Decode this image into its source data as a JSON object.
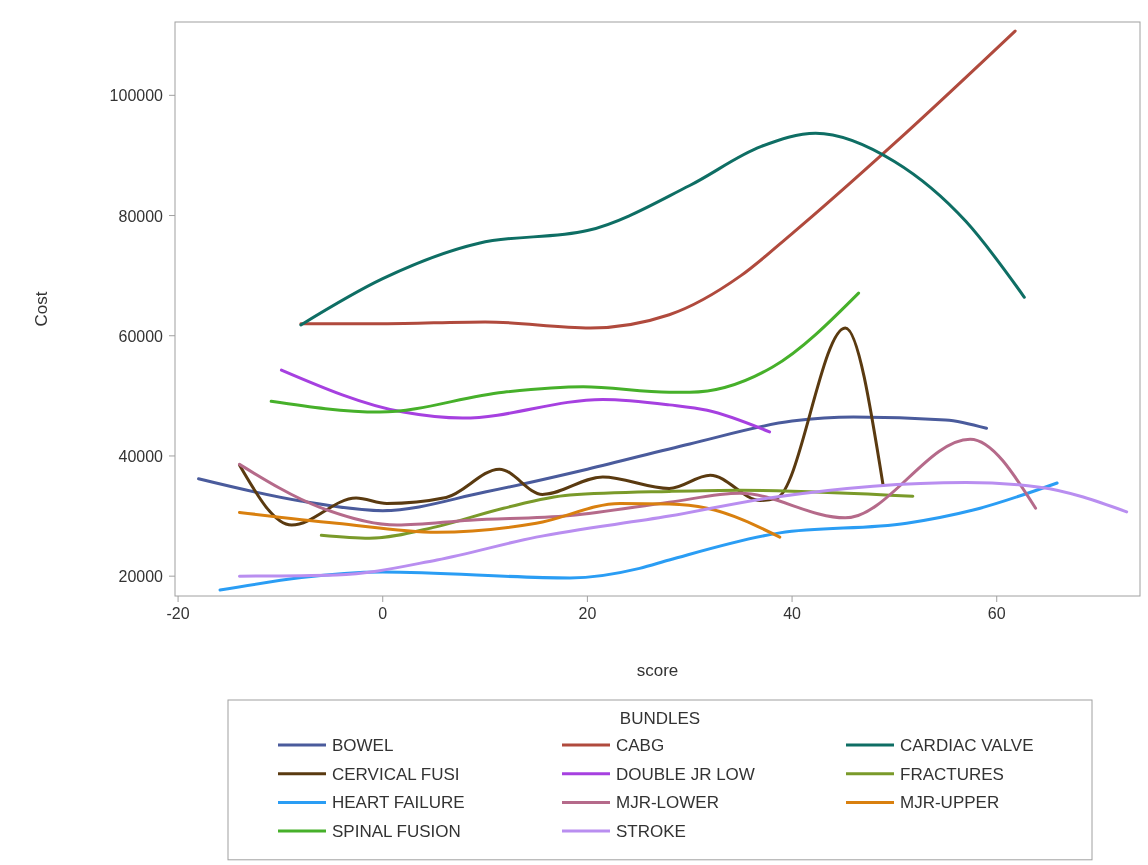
{
  "chart_data": {
    "type": "line",
    "xlabel": "score",
    "ylabel": "Cost",
    "legend_title": "BUNDLES",
    "legend": "bottom",
    "grid": false,
    "marker": "none",
    "line_style": "solid",
    "xlim": [
      -20.3,
      74
    ],
    "ylim": [
      16700,
      112200
    ],
    "xticks": [
      -20,
      0,
      20,
      40,
      60
    ],
    "yticks": [
      20000,
      40000,
      60000,
      80000,
      100000
    ],
    "series": [
      {
        "name": "BOWEL",
        "color": "#4a5b9c",
        "x": [
          -18,
          -8,
          0,
          10,
          20,
          30,
          40,
          46,
          55,
          59
        ],
        "values": [
          36200,
          32500,
          30900,
          34000,
          37800,
          42000,
          45800,
          46500,
          46000,
          44600
        ]
      },
      {
        "name": "CABG",
        "color": "#b04a3d",
        "x": [
          -8,
          0,
          10,
          20.3,
          28,
          35,
          40,
          50,
          61.8
        ],
        "values": [
          62000,
          62000,
          62300,
          61300,
          63500,
          70000,
          77000,
          92000,
          110700
        ]
      },
      {
        "name": "CARDIAC VALVE",
        "color": "#0e6e64",
        "x": [
          -8,
          0,
          9.4,
          20,
          30,
          37,
          42.3,
          50,
          57,
          62.7
        ],
        "values": [
          61800,
          69500,
          75400,
          77500,
          85000,
          91500,
          93700,
          89000,
          79000,
          66400
        ]
      },
      {
        "name": "CERVICAL FUSI",
        "color": "#5a3a10",
        "x": [
          -14,
          -8.9,
          -2.6,
          0.4,
          6.2,
          11.4,
          15.6,
          21.5,
          28,
          32,
          36.9,
          38.5,
          45.2,
          48.9
        ],
        "values": [
          38500,
          28500,
          33000,
          32100,
          33100,
          37800,
          33600,
          36500,
          34600,
          36800,
          32600,
          33000,
          61300,
          35100
        ]
      },
      {
        "name": "DOUBLE JR LOW",
        "color": "#a640e0",
        "x": [
          -9.9,
          2,
          7.8,
          21.5,
          28,
          31.7,
          37.8
        ],
        "values": [
          54300,
          47300,
          46300,
          49400,
          48500,
          47600,
          44000
        ]
      },
      {
        "name": "FRACTURES",
        "color": "#7a9a2a",
        "x": [
          -6,
          -1.3,
          5.2,
          11.8,
          18.3,
          28,
          34.9,
          51.8
        ],
        "values": [
          26800,
          26300,
          28200,
          31300,
          33500,
          34100,
          34300,
          33300
        ]
      },
      {
        "name": "HEART FAILURE",
        "color": "#2a9df4",
        "x": [
          -15.9,
          0,
          18.3,
          25.1,
          28,
          38.8,
          51.2,
          57.7,
          65.9
        ],
        "values": [
          17700,
          20700,
          19700,
          21300,
          22700,
          27200,
          28800,
          31000,
          35500
        ]
      },
      {
        "name": "MJR-LOWER",
        "color": "#b56a8a",
        "x": [
          -14,
          -6.2,
          1.4,
          8.5,
          18.3,
          28,
          34.9,
          45.2,
          57.4,
          63.8
        ],
        "values": [
          38600,
          31500,
          28500,
          29300,
          30100,
          32300,
          33800,
          29700,
          42800,
          31300
        ]
      },
      {
        "name": "MJR-UPPER",
        "color": "#d9800f",
        "x": [
          -14,
          -4.5,
          5.3,
          15,
          23.2,
          28,
          31.7,
          38.8
        ],
        "values": [
          30600,
          28800,
          27300,
          28800,
          32100,
          32000,
          31300,
          26500
        ]
      },
      {
        "name": "SPINAL FUSION",
        "color": "#46b02a",
        "x": [
          -10.9,
          -0.3,
          11.8,
          19.6,
          28,
          30,
          38.1,
          46.5
        ],
        "values": [
          49100,
          47300,
          50600,
          51500,
          50600,
          50600,
          54800,
          67100
        ]
      },
      {
        "name": "STROKE",
        "color": "#b98ef0",
        "x": [
          -14,
          -4.5,
          5.3,
          15,
          28,
          38.1,
          57,
          64.2,
          72.7
        ],
        "values": [
          20000,
          20200,
          22700,
          26500,
          30000,
          33100,
          35600,
          34800,
          30700
        ]
      }
    ]
  }
}
